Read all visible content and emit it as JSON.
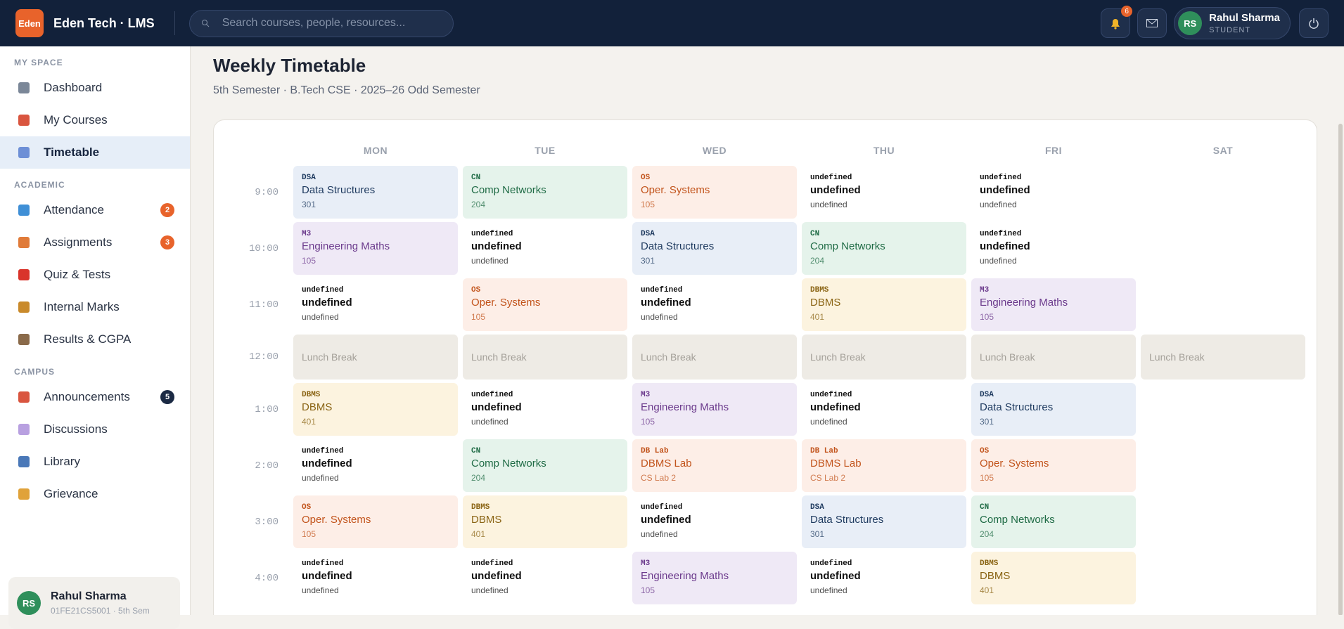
{
  "header": {
    "logo": "Eden",
    "brand": "Eden Tech · LMS",
    "search_placeholder": "Search courses, people, resources...",
    "notifications": 6,
    "user": {
      "initials": "RS",
      "name": "Rahul Sharma",
      "role": "STUDENT"
    }
  },
  "sidebar": {
    "sections": [
      {
        "title": "MY SPACE",
        "items": [
          {
            "label": "Dashboard"
          },
          {
            "label": "My Courses"
          },
          {
            "label": "Timetable",
            "active": true
          }
        ]
      },
      {
        "title": "ACADEMIC",
        "items": [
          {
            "label": "Attendance",
            "badge": 2
          },
          {
            "label": "Assignments",
            "badge": 3
          },
          {
            "label": "Quiz & Tests"
          },
          {
            "label": "Internal Marks"
          },
          {
            "label": "Results & CGPA"
          }
        ]
      },
      {
        "title": "CAMPUS",
        "items": [
          {
            "label": "Announcements",
            "badge": 5,
            "badge_color": "#1b2a44"
          },
          {
            "label": "Discussions"
          },
          {
            "label": "Library"
          },
          {
            "label": "Grievance"
          }
        ]
      }
    ],
    "user": {
      "initials": "RS",
      "name": "Rahul Sharma",
      "detail": "01FE21CS5001 · 5th Sem"
    }
  },
  "page": {
    "title": "Weekly Timetable",
    "subtitle": "5th Semester · B.Tech CSE · 2025–26 Odd Semester"
  },
  "timetable": {
    "days": [
      "MON",
      "TUE",
      "WED",
      "THU",
      "FRI",
      "SAT"
    ],
    "rows": [
      {
        "time": "9:00",
        "cells": [
          {
            "code": "DSA",
            "name": "Data Structures",
            "room": "301",
            "color": "blue"
          },
          {
            "code": "CN",
            "name": "Comp Networks",
            "room": "204",
            "color": "green"
          },
          {
            "code": "OS",
            "name": "Oper. Systems",
            "room": "105",
            "color": "orange"
          },
          {
            "code": "undefined",
            "name": "undefined",
            "room": "undefined",
            "color": "none"
          },
          {
            "code": "undefined",
            "name": "undefined",
            "room": "undefined",
            "color": "none"
          },
          null
        ]
      },
      {
        "time": "10:00",
        "cells": [
          {
            "code": "M3",
            "name": "Engineering Maths",
            "room": "105",
            "color": "purple"
          },
          {
            "code": "undefined",
            "name": "undefined",
            "room": "undefined",
            "color": "none"
          },
          {
            "code": "DSA",
            "name": "Data Structures",
            "room": "301",
            "color": "blue"
          },
          {
            "code": "CN",
            "name": "Comp Networks",
            "room": "204",
            "color": "green"
          },
          {
            "code": "undefined",
            "name": "undefined",
            "room": "undefined",
            "color": "none"
          },
          null
        ]
      },
      {
        "time": "11:00",
        "cells": [
          {
            "code": "undefined",
            "name": "undefined",
            "room": "undefined",
            "color": "none"
          },
          {
            "code": "OS",
            "name": "Oper. Systems",
            "room": "105",
            "color": "orange"
          },
          {
            "code": "undefined",
            "name": "undefined",
            "room": "undefined",
            "color": "none"
          },
          {
            "code": "DBMS",
            "name": "DBMS",
            "room": "401",
            "color": "yellow"
          },
          {
            "code": "M3",
            "name": "Engineering Maths",
            "room": "105",
            "color": "purple"
          },
          null
        ]
      },
      {
        "time": "12:00",
        "lunch": true,
        "cells": [
          {
            "label": "Lunch Break"
          },
          {
            "label": "Lunch Break"
          },
          {
            "label": "Lunch Break"
          },
          {
            "label": "Lunch Break"
          },
          {
            "label": "Lunch Break"
          },
          {
            "label": "Lunch Break"
          }
        ]
      },
      {
        "time": "1:00",
        "cells": [
          {
            "code": "DBMS",
            "name": "DBMS",
            "room": "401",
            "color": "yellow"
          },
          {
            "code": "undefined",
            "name": "undefined",
            "room": "undefined",
            "color": "none"
          },
          {
            "code": "M3",
            "name": "Engineering Maths",
            "room": "105",
            "color": "purple"
          },
          {
            "code": "undefined",
            "name": "undefined",
            "room": "undefined",
            "color": "none"
          },
          {
            "code": "DSA",
            "name": "Data Structures",
            "room": "301",
            "color": "blue"
          },
          null
        ]
      },
      {
        "time": "2:00",
        "cells": [
          {
            "code": "undefined",
            "name": "undefined",
            "room": "undefined",
            "color": "none"
          },
          {
            "code": "CN",
            "name": "Comp Networks",
            "room": "204",
            "color": "green"
          },
          {
            "code": "DB Lab",
            "name": "DBMS Lab",
            "room": "CS Lab 2",
            "color": "orange"
          },
          {
            "code": "DB Lab",
            "name": "DBMS Lab",
            "room": "CS Lab 2",
            "color": "orange"
          },
          {
            "code": "OS",
            "name": "Oper. Systems",
            "room": "105",
            "color": "orange"
          },
          null
        ]
      },
      {
        "time": "3:00",
        "cells": [
          {
            "code": "OS",
            "name": "Oper. Systems",
            "room": "105",
            "color": "orange"
          },
          {
            "code": "DBMS",
            "name": "DBMS",
            "room": "401",
            "color": "yellow"
          },
          {
            "code": "undefined",
            "name": "undefined",
            "room": "undefined",
            "color": "none"
          },
          {
            "code": "DSA",
            "name": "Data Structures",
            "room": "301",
            "color": "blue"
          },
          {
            "code": "CN",
            "name": "Comp Networks",
            "room": "204",
            "color": "green"
          },
          null
        ]
      },
      {
        "time": "4:00",
        "cells": [
          {
            "code": "undefined",
            "name": "undefined",
            "room": "undefined",
            "color": "none"
          },
          {
            "code": "undefined",
            "name": "undefined",
            "room": "undefined",
            "color": "none"
          },
          {
            "code": "M3",
            "name": "Engineering Maths",
            "room": "105",
            "color": "purple"
          },
          {
            "code": "undefined",
            "name": "undefined",
            "room": "undefined",
            "color": "none"
          },
          {
            "code": "DBMS",
            "name": "DBMS",
            "room": "401",
            "color": "yellow"
          },
          null
        ]
      }
    ]
  }
}
